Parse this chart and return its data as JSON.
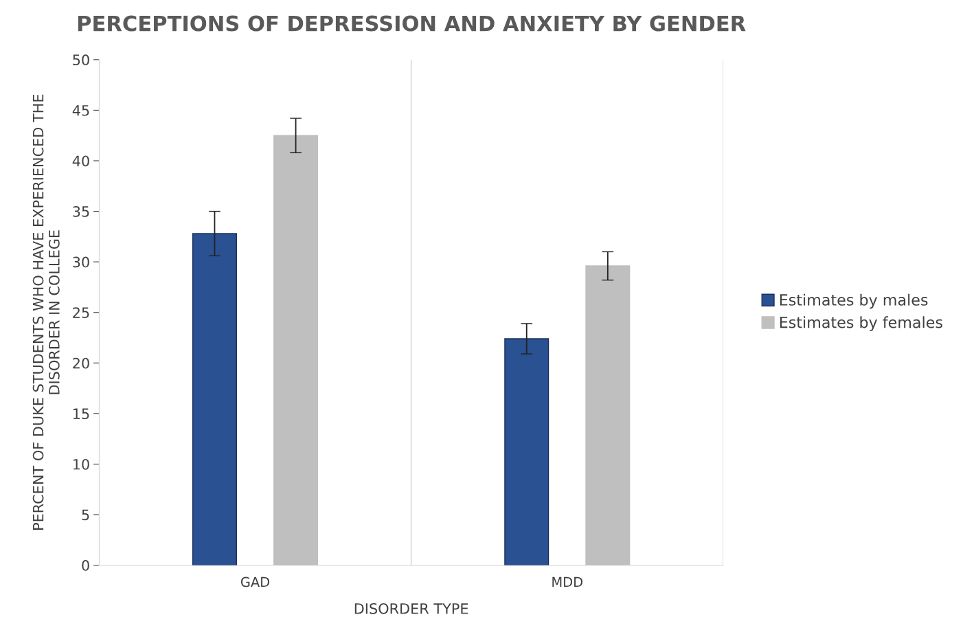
{
  "chart_data": {
    "type": "bar",
    "title": "PERCEPTIONS OF DEPRESSION AND ANXIETY BY GENDER",
    "xlabel": "DISORDER TYPE",
    "ylabel": "PERCENT OF DUKE STUDENTS WHO HAVE EXPERIENCED THE\nDISORDER IN COLLEGE",
    "categories": [
      "GAD",
      "MDD"
    ],
    "series": [
      {
        "name": "Estimates by males",
        "color": "#2a5191",
        "values": [
          32.8,
          22.4
        ],
        "errors": [
          2.2,
          1.5
        ]
      },
      {
        "name": "Estimates by females",
        "color": "#bfbfbf",
        "values": [
          42.5,
          29.6
        ],
        "errors": [
          1.7,
          1.4
        ]
      }
    ],
    "ylim": [
      0,
      50
    ],
    "yticks": [
      0,
      5,
      10,
      15,
      20,
      25,
      30,
      35,
      40,
      45,
      50
    ],
    "grid": "x",
    "legend": "right"
  }
}
